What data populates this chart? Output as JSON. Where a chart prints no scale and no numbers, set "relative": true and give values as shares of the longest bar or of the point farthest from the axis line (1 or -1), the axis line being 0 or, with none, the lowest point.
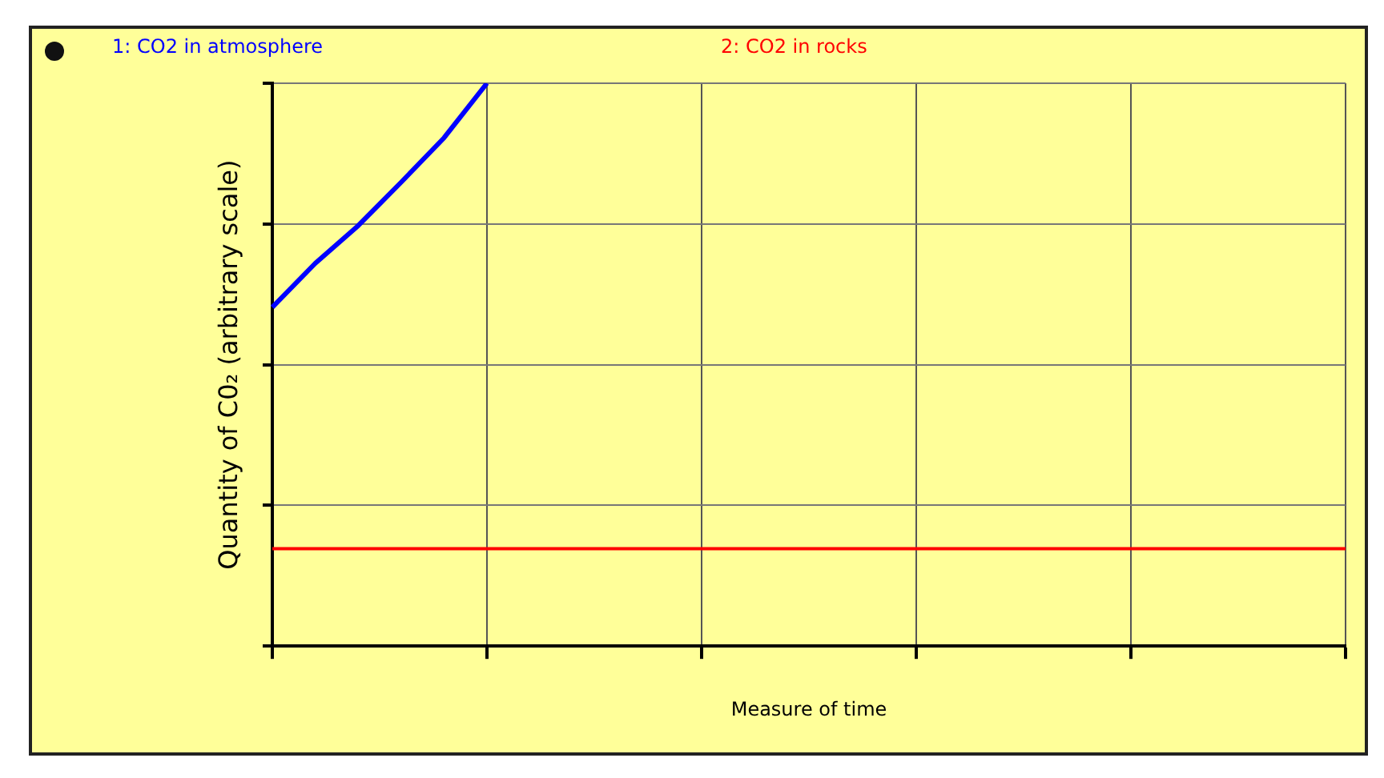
{
  "chart_data": {
    "type": "line",
    "relative": true,
    "xlabel": "Measure of time",
    "ylabel": "Quantity of C0₂ (arbitrary scale)",
    "categories": [
      null,
      null,
      null,
      null,
      null,
      null,
      null,
      null,
      null,
      null,
      null,
      null,
      null,
      null,
      null,
      null,
      null,
      null,
      null,
      null,
      null,
      null,
      null,
      null,
      null,
      null
    ],
    "series": [
      {
        "name": "1: CO2 in atmosphere",
        "color": "#0000ff",
        "values": [
          0.602,
          0.68,
          0.747,
          0.824,
          0.903,
          1.0,
          null,
          null,
          null,
          null,
          null,
          null,
          null,
          null,
          null,
          null,
          null,
          null,
          null,
          null,
          null,
          null,
          null,
          null,
          null,
          null
        ]
      },
      {
        "name": "2: CO2 in rocks",
        "color": "#ff0000",
        "values": [
          0.173,
          0.173,
          0.173,
          0.173,
          0.173,
          0.173,
          0.173,
          0.173,
          0.173,
          0.173,
          0.173,
          0.173,
          0.173,
          0.173,
          0.173,
          0.173,
          0.173,
          0.173,
          0.173,
          0.173,
          0.173,
          0.173,
          0.173,
          0.173,
          0.173,
          0.173
        ]
      }
    ],
    "grid": true,
    "legend": "top",
    "marker": "none",
    "line_style": "solid"
  }
}
